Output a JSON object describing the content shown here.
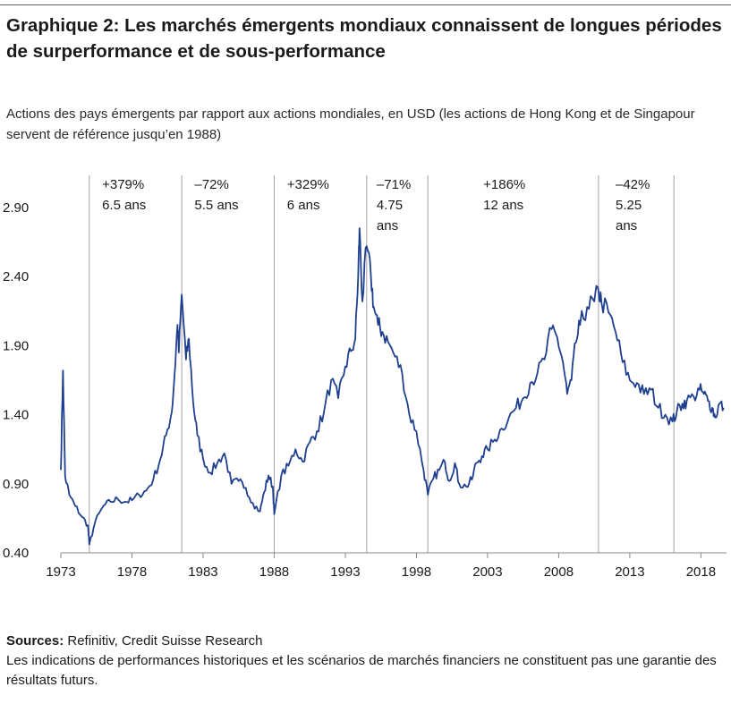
{
  "title": "Graphique 2: Les marchés émergents mondiaux connaissent de longues périodes de surperformance et de sous-performance",
  "subtitle": "Actions des pays émergents par rapport aux actions mondiales, en USD (les actions de Hong Kong et de Singapour servent de référence jusqu’en 1988)",
  "sources_label": "Sources:",
  "sources_text": " Refinitiv, Credit Suisse Research",
  "disclaimer": "Les indications de performances historiques et les scénarios de marchés financiers ne constituent pas une garantie des résultats futurs.",
  "colors": {
    "line": "#1f3f8f",
    "divider": "#a0a0a0",
    "axis": "#888888"
  },
  "chart_data": {
    "type": "line",
    "xlim": [
      1973,
      2019.8
    ],
    "ylim": [
      0.4,
      3.2
    ],
    "x_ticks": [
      1973,
      1978,
      1983,
      1988,
      1993,
      1998,
      2003,
      2008,
      2013,
      2018
    ],
    "y_ticks": [
      {
        "value": 0.4,
        "label": "0.40"
      },
      {
        "value": 0.9,
        "label": "0.90"
      },
      {
        "value": 1.4,
        "label": "1.40"
      },
      {
        "value": 1.9,
        "label": "1.90"
      },
      {
        "value": 2.4,
        "label": "2.40"
      },
      {
        "value": 2.9,
        "label": "2.90"
      }
    ],
    "dividers": [
      1975.0,
      1981.5,
      1988.0,
      1994.5,
      1998.8,
      2010.8,
      2016.1
    ],
    "annotations": [
      {
        "lines": [
          "+379%",
          "6.5 ans"
        ],
        "x": 1975.9
      },
      {
        "lines": [
          "–72%",
          "5.5 ans"
        ],
        "x": 1982.4
      },
      {
        "lines": [
          "+329%",
          "6 ans"
        ],
        "x": 1988.9
      },
      {
        "lines": [
          "–71%",
          "4.75",
          "ans"
        ],
        "x": 1995.2
      },
      {
        "lines": [
          "+186%",
          "12 ans"
        ],
        "x": 2002.7
      },
      {
        "lines": [
          "–42%",
          "5.25",
          "ans"
        ],
        "x": 2012.0
      }
    ],
    "series": [
      {
        "x": [
          1973.0,
          1973.15,
          1973.3,
          1973.6,
          1974.0,
          1974.5,
          1974.9,
          1975.0,
          1975.4,
          1976.0,
          1976.5,
          1977.0,
          1977.5,
          1978.0,
          1978.5,
          1979.0,
          1979.5,
          1980.0,
          1980.4,
          1980.8,
          1981.0,
          1981.2,
          1981.3,
          1981.5,
          1981.8,
          1982.0,
          1982.3,
          1982.6,
          1983.0,
          1983.5,
          1984.0,
          1984.5,
          1985.0,
          1985.5,
          1986.0,
          1986.5,
          1987.0,
          1987.3,
          1987.6,
          1987.9,
          1988.0,
          1988.5,
          1989.0,
          1989.5,
          1990.0,
          1990.5,
          1991.0,
          1991.5,
          1992.0,
          1992.5,
          1993.0,
          1993.4,
          1993.7,
          1993.9,
          1994.0,
          1994.2,
          1994.5,
          1994.8,
          1995.0,
          1995.3,
          1995.6,
          1996.0,
          1996.5,
          1997.0,
          1997.5,
          1998.0,
          1998.5,
          1998.8,
          1999.2,
          1999.6,
          2000.0,
          2000.3,
          2000.7,
          2001.0,
          2001.5,
          2001.9,
          2002.2,
          2002.6,
          2003.0,
          2003.5,
          2004.0,
          2004.5,
          2005.0,
          2005.5,
          2006.0,
          2006.5,
          2007.0,
          2007.5,
          2007.9,
          2008.3,
          2008.6,
          2008.9,
          2009.2,
          2009.5,
          2010.0,
          2010.5,
          2010.8,
          2011.0,
          2011.5,
          2012.0,
          2012.5,
          2013.0,
          2013.5,
          2014.0,
          2014.5,
          2015.0,
          2015.5,
          2016.0,
          2016.3,
          2016.7,
          2017.0,
          2017.5,
          2017.9,
          2018.2,
          2018.5,
          2018.8,
          2019.0,
          2019.3,
          2019.6
        ],
        "values": [
          1.0,
          1.72,
          0.95,
          0.82,
          0.74,
          0.66,
          0.6,
          0.46,
          0.62,
          0.74,
          0.77,
          0.79,
          0.77,
          0.78,
          0.82,
          0.85,
          0.93,
          1.08,
          1.25,
          1.42,
          1.7,
          2.05,
          1.85,
          2.27,
          1.8,
          1.95,
          1.5,
          1.25,
          1.08,
          0.98,
          1.05,
          1.12,
          0.9,
          0.92,
          0.87,
          0.76,
          0.7,
          0.84,
          0.96,
          0.88,
          0.68,
          0.96,
          1.03,
          1.15,
          1.06,
          1.2,
          1.28,
          1.42,
          1.65,
          1.52,
          1.75,
          1.86,
          1.95,
          2.4,
          2.75,
          2.22,
          2.62,
          2.4,
          2.18,
          2.05,
          2.0,
          1.93,
          1.82,
          1.7,
          1.4,
          1.28,
          1.0,
          0.82,
          0.94,
          1.0,
          1.06,
          0.92,
          1.05,
          0.9,
          0.88,
          0.93,
          1.05,
          1.1,
          1.15,
          1.22,
          1.3,
          1.38,
          1.45,
          1.52,
          1.63,
          1.7,
          1.8,
          2.02,
          1.96,
          1.78,
          1.55,
          1.65,
          1.92,
          2.05,
          2.18,
          2.22,
          2.3,
          2.22,
          2.14,
          2.0,
          1.78,
          1.65,
          1.63,
          1.55,
          1.58,
          1.45,
          1.4,
          1.35,
          1.42,
          1.48,
          1.5,
          1.53,
          1.58,
          1.55,
          1.5,
          1.45,
          1.38,
          1.48,
          1.45
        ]
      }
    ]
  }
}
